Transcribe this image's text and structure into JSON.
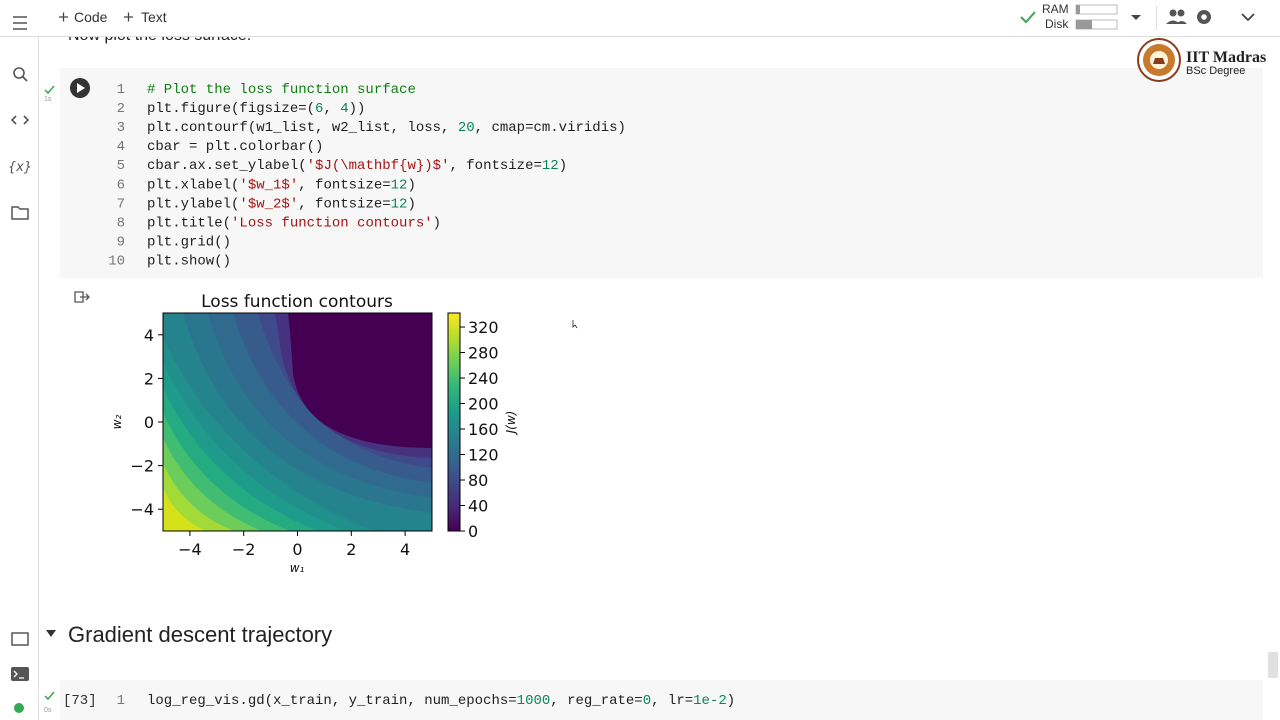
{
  "toolbar": {
    "add_code": "Code",
    "add_text": "Text",
    "ram": "RAM",
    "disk": "Disk"
  },
  "notebook_text": "Now plot the loss surface.",
  "logo": {
    "name": "IIT Madras",
    "subtitle": "BSc Degree"
  },
  "cells": [
    {
      "exec_time": "1s",
      "lines": [
        {
          "number": 1,
          "tokens": [
            {
              "text": "# Plot the loss function surface",
              "style": "comment"
            }
          ]
        },
        {
          "number": 2,
          "tokens": [
            {
              "text": "plt.figure(figsize=(",
              "style": "plain"
            },
            {
              "text": "6",
              "style": "number"
            },
            {
              "text": ", ",
              "style": "plain"
            },
            {
              "text": "4",
              "style": "number"
            },
            {
              "text": "))",
              "style": "plain"
            }
          ]
        },
        {
          "number": 3,
          "tokens": [
            {
              "text": "plt.contourf(w1_list, w2_list, loss, ",
              "style": "plain"
            },
            {
              "text": "20",
              "style": "number"
            },
            {
              "text": ", cmap=cm.viridis)",
              "style": "plain"
            }
          ]
        },
        {
          "number": 4,
          "tokens": [
            {
              "text": "cbar = plt.colorbar()",
              "style": "plain"
            }
          ]
        },
        {
          "number": 5,
          "tokens": [
            {
              "text": "cbar.ax.set_ylabel(",
              "style": "plain"
            },
            {
              "text": "'$J(\\mathbf{w})$'",
              "style": "string"
            },
            {
              "text": ", fontsize=",
              "style": "plain"
            },
            {
              "text": "12",
              "style": "number"
            },
            {
              "text": ")",
              "style": "plain"
            }
          ]
        },
        {
          "number": 6,
          "tokens": [
            {
              "text": "plt.xlabel(",
              "style": "plain"
            },
            {
              "text": "'$w_1$'",
              "style": "string"
            },
            {
              "text": ", fontsize=",
              "style": "plain"
            },
            {
              "text": "12",
              "style": "number"
            },
            {
              "text": ")",
              "style": "plain"
            }
          ]
        },
        {
          "number": 7,
          "tokens": [
            {
              "text": "plt.ylabel(",
              "style": "plain"
            },
            {
              "text": "'$w_2$'",
              "style": "string"
            },
            {
              "text": ", fontsize=",
              "style": "plain"
            },
            {
              "text": "12",
              "style": "number"
            },
            {
              "text": ")",
              "style": "plain"
            }
          ]
        },
        {
          "number": 8,
          "tokens": [
            {
              "text": "plt.title(",
              "style": "plain"
            },
            {
              "text": "'Loss function contours'",
              "style": "string"
            },
            {
              "text": ")",
              "style": "plain"
            }
          ]
        },
        {
          "number": 9,
          "tokens": [
            {
              "text": "plt.grid()",
              "style": "plain"
            }
          ]
        },
        {
          "number": 10,
          "tokens": [
            {
              "text": "plt.show()",
              "style": "plain"
            }
          ]
        }
      ]
    },
    {
      "execution_count": "[73]",
      "exec_time": "0s",
      "lines": [
        {
          "number": 1,
          "tokens": [
            {
              "text": "log_reg_vis.gd(x_train, y_train, num_epochs=",
              "style": "plain"
            },
            {
              "text": "1000",
              "style": "number"
            },
            {
              "text": ", reg_rate=",
              "style": "plain"
            },
            {
              "text": "0",
              "style": "number"
            },
            {
              "text": ", lr=",
              "style": "plain"
            },
            {
              "text": "1e-2",
              "style": "number"
            },
            {
              "text": ")",
              "style": "plain"
            }
          ]
        }
      ]
    }
  ],
  "section_heading": "Gradient descent trajectory",
  "chart_data": {
    "type": "contourf",
    "title": "Loss function contours",
    "xlabel": "w₁",
    "ylabel": "w₂",
    "xlim": [
      -5,
      5
    ],
    "ylim": [
      -5,
      5
    ],
    "xticks": [
      {
        "value": -4,
        "label": "−4"
      },
      {
        "value": -2,
        "label": "−2"
      },
      0,
      2,
      4
    ],
    "yticks": [
      {
        "value": -4,
        "label": "−4"
      },
      {
        "value": -2,
        "label": "−2"
      },
      0,
      2,
      4
    ],
    "colormap": "viridis",
    "colorbar": {
      "label": "J(w)",
      "lim": [
        0,
        342
      ],
      "ticks": [
        0,
        40,
        80,
        120,
        160,
        200,
        240,
        280,
        320
      ]
    }
  }
}
